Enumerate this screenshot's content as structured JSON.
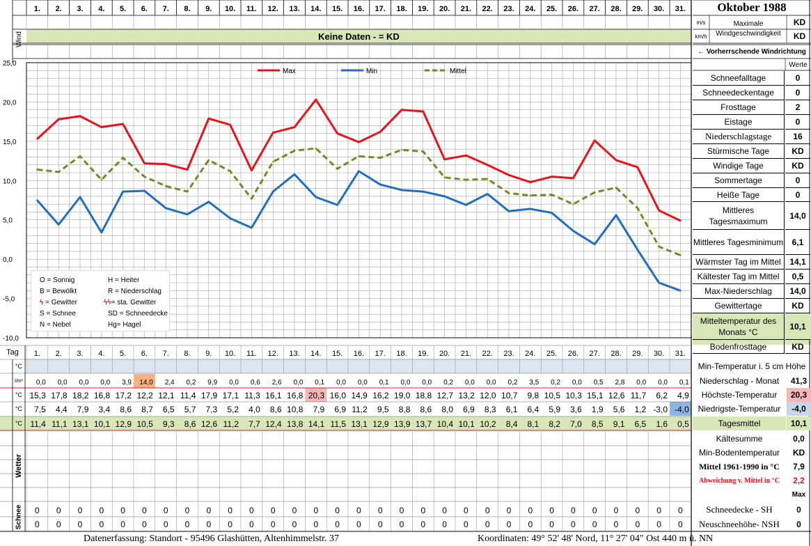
{
  "header": {
    "days": [
      "1.",
      "2.",
      "3.",
      "4.",
      "5.",
      "6.",
      "7.",
      "8.",
      "9.",
      "10.",
      "11.",
      "12.",
      "13.",
      "14.",
      "15.",
      "16.",
      "17.",
      "18.",
      "19.",
      "20.",
      "21.",
      "22.",
      "23.",
      "24.",
      "25.",
      "26.",
      "27.",
      "28.",
      "29.",
      "30.",
      "31."
    ],
    "month_title": "Oktober 1988",
    "wind_label": "Wind",
    "ms": "m/s",
    "kmh": "km/h",
    "max_wind_label": "Maximale Windgeschwindigkeit",
    "max_wind_ms": "KD",
    "max_wind_kmh": "KD",
    "no_data": "Keine Daten -  = KD",
    "prevailing_dir": "← Vorherrschende Windrichtung"
  },
  "legend_box": {
    "o": "O = Sonnig",
    "h": "H = Heiter",
    "b": "B = Bewölkt",
    "r": "R = Niederschlag",
    "g": "= Gewitter",
    "sg": "= sta. Gewitter",
    "s": "S = Schnee",
    "sd": "SD = Schneedecke",
    "n": "N = Nebel",
    "hg": "Hg= Hagel"
  },
  "stats": {
    "werte": "Werte",
    "rows": [
      {
        "label": "Schneefalltage",
        "value": "0"
      },
      {
        "label": "Schneedeckentage",
        "value": "0"
      },
      {
        "label": "Frosttage",
        "value": "2"
      },
      {
        "label": "Eistage",
        "value": "0"
      },
      {
        "label": "Niederschlagstage",
        "value": "16"
      },
      {
        "label": "Stürmische Tage",
        "value": "KD"
      },
      {
        "label": "Windige Tage",
        "value": "KD"
      },
      {
        "label": "Sommertage",
        "value": "0"
      },
      {
        "label": "Heiße Tage",
        "value": "0"
      },
      {
        "label": "Mittleres Tagesmaximum",
        "value": "14,0"
      },
      {
        "label": "Mittleres Tagesminimum",
        "value": "6,1"
      },
      {
        "label": "Wärmster Tag im Mittel",
        "value": "14,1"
      },
      {
        "label": "Kältester Tag im Mittel",
        "value": "0,5"
      },
      {
        "label": "Max-Niederschlag",
        "value": "14,0"
      },
      {
        "label": "Gewittertage",
        "value": "KD"
      },
      {
        "label": "Mitteltemperatur des Monats °C",
        "value": "10,1"
      },
      {
        "label": "Bodenfrosttage",
        "value": "KD"
      }
    ]
  },
  "table": {
    "tag_label": "Tag",
    "unit_c": "°C",
    "unit_lm": "l/m²",
    "row_min5": {
      "label": "Min-Temperatur i. 5 cm Höhe",
      "value": ""
    },
    "precip": {
      "label": "Niederschlag - Monat",
      "value": "41,3",
      "values": [
        "0,0",
        "0,0",
        "0,0",
        "0,0",
        "3,9",
        "14,0",
        "2,4",
        "0,2",
        "9,9",
        "0,0",
        "0,6",
        "2,6",
        "0,0",
        "0,1",
        "0,0",
        "0,0",
        "0,1",
        "0,0",
        "0,0",
        "0,2",
        "0,0",
        "0,0",
        "0,2",
        "3,5",
        "0,2",
        "0,0",
        "0,5",
        "2,8",
        "0,0",
        "0,0",
        "0,1"
      ]
    },
    "max": {
      "label": "Höchste-Temperatur",
      "value": "20,3",
      "values": [
        "15,3",
        "17,8",
        "18,2",
        "16,8",
        "17,2",
        "12,2",
        "12,1",
        "11,4",
        "17,9",
        "17,1",
        "11,3",
        "16,1",
        "16,8",
        "20,3",
        "16,0",
        "14,9",
        "16,2",
        "19,0",
        "18,8",
        "12,7",
        "13,2",
        "12,0",
        "10,7",
        "9,8",
        "10,5",
        "10,3",
        "15,1",
        "12,6",
        "11,7",
        "6,2",
        "4,9"
      ]
    },
    "min": {
      "label": "Niedrigste-Temperatur",
      "value": "-4,0",
      "values": [
        "7,5",
        "4,4",
        "7,9",
        "3,4",
        "8,6",
        "8,7",
        "6,5",
        "5,7",
        "7,3",
        "5,2",
        "4,0",
        "8,6",
        "10,8",
        "7,9",
        "6,9",
        "11,2",
        "9,5",
        "8,8",
        "8,6",
        "8,0",
        "6,9",
        "8,3",
        "6,1",
        "6,4",
        "5,9",
        "3,6",
        "1,9",
        "5,6",
        "1,2",
        "-3,0",
        "-4,0"
      ]
    },
    "mean": {
      "label": "Tagesmittel",
      "value": "10,1",
      "values": [
        "11,4",
        "11,1",
        "13,1",
        "10,1",
        "12,9",
        "10,5",
        "9,3",
        "8,6",
        "12,6",
        "11,2",
        "7,7",
        "12,4",
        "13,8",
        "14,1",
        "11,5",
        "13,1",
        "12,9",
        "13,9",
        "13,7",
        "10,4",
        "10,1",
        "10,2",
        "8,4",
        "8,1",
        "8,2",
        "7,0",
        "8,5",
        "9,1",
        "6,5",
        "1,6",
        "0,5"
      ]
    },
    "kaeltesumme": {
      "label": "Kältesumme",
      "value": "0,0"
    },
    "minboden": {
      "label": "Min-Bodentemperatur",
      "value": "KD"
    },
    "mittel6190": {
      "label": "Mittel 1961-1990 in °C",
      "value": "7,9"
    },
    "abweichung": {
      "label": "Abweichung v. Mittel in °C",
      "value": "2,2"
    },
    "wetter_label": "Wetter",
    "max_label": "Max",
    "schnee_label": "Schnee",
    "sh": {
      "label": "Schneedecke -   SH",
      "value": "0",
      "values": [
        "0",
        "0",
        "0",
        "0",
        "0",
        "0",
        "0",
        "0",
        "0",
        "0",
        "0",
        "0",
        "0",
        "0",
        "0",
        "0",
        "0",
        "0",
        "0",
        "0",
        "0",
        "0",
        "0",
        "0",
        "0",
        "0",
        "0",
        "0",
        "0",
        "0",
        "0"
      ]
    },
    "nsh": {
      "label": "Neuschneehöhe- NSH",
      "value": "0",
      "values": [
        "0",
        "0",
        "0",
        "0",
        "0",
        "0",
        "0",
        "0",
        "0",
        "0",
        "0",
        "0",
        "0",
        "0",
        "0",
        "0",
        "0",
        "0",
        "0",
        "0",
        "0",
        "0",
        "0",
        "0",
        "0",
        "0",
        "0",
        "0",
        "0",
        "0",
        "0"
      ]
    }
  },
  "footer": {
    "station": "Datenerfassung:  Standort -   95496  Glashütten, Altenhimmelstr. 37",
    "coords": "Koordinaten:  49° 52' 48' Nord,  11° 27' 04\" Ost   440 m ü. NN"
  },
  "chart_data": {
    "type": "line",
    "x": [
      1,
      2,
      3,
      4,
      5,
      6,
      7,
      8,
      9,
      10,
      11,
      12,
      13,
      14,
      15,
      16,
      17,
      18,
      19,
      20,
      21,
      22,
      23,
      24,
      25,
      26,
      27,
      28,
      29,
      30,
      31
    ],
    "ylim": [
      -10,
      25
    ],
    "yticks": [
      "25,0",
      "20,0",
      "15,0",
      "10,0",
      "5,0",
      "0,0",
      "-5,0",
      "-10,0"
    ],
    "grid": true,
    "legend_position": "top",
    "series": [
      {
        "name": "Max",
        "color": "#e8141b",
        "style": "solid",
        "values": [
          15.3,
          17.8,
          18.2,
          16.8,
          17.2,
          12.2,
          12.1,
          11.4,
          17.9,
          17.1,
          11.3,
          16.1,
          16.8,
          20.3,
          16.0,
          14.9,
          16.2,
          19.0,
          18.8,
          12.7,
          13.2,
          12.0,
          10.7,
          9.8,
          10.5,
          10.3,
          15.1,
          12.6,
          11.7,
          6.2,
          4.9
        ]
      },
      {
        "name": "Min",
        "color": "#1f6fc0",
        "style": "solid",
        "values": [
          7.5,
          4.4,
          7.9,
          3.4,
          8.6,
          8.7,
          6.5,
          5.7,
          7.3,
          5.2,
          4.0,
          8.6,
          10.8,
          7.9,
          6.9,
          11.2,
          9.5,
          8.8,
          8.6,
          8.0,
          6.9,
          8.3,
          6.1,
          6.4,
          5.9,
          3.6,
          1.9,
          5.6,
          1.2,
          -3.0,
          -4.0
        ]
      },
      {
        "name": "Mittel",
        "color": "#6b8e23",
        "style": "dashed",
        "values": [
          11.4,
          11.1,
          13.1,
          10.1,
          12.9,
          10.5,
          9.3,
          8.6,
          12.6,
          11.2,
          7.7,
          12.4,
          13.8,
          14.1,
          11.5,
          13.1,
          12.9,
          13.9,
          13.7,
          10.4,
          10.1,
          10.2,
          8.4,
          8.1,
          8.2,
          7.0,
          8.5,
          9.1,
          6.5,
          1.6,
          0.5
        ]
      }
    ]
  }
}
